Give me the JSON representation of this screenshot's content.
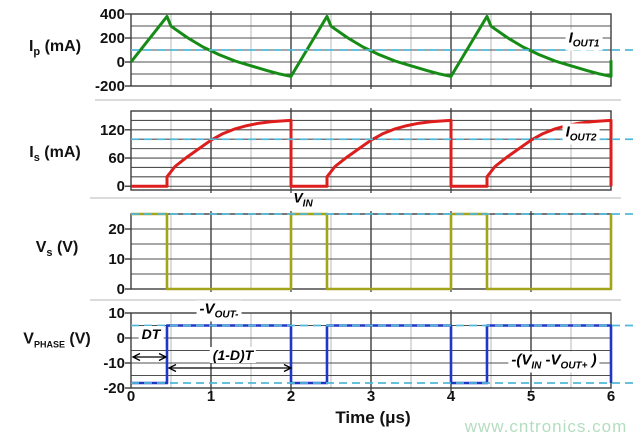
{
  "watermark_text": "www.cntronics.com",
  "axis": {
    "x_label": "Time (μs)",
    "x_ticks": [
      "0",
      "1",
      "2",
      "3",
      "4",
      "5",
      "6"
    ]
  },
  "y_axis_labels": {
    "ip": {
      "main": "I",
      "sub": "p",
      "rest": " (mA)"
    },
    "is": {
      "main": "I",
      "sub": "s",
      "rest": " (mA)"
    },
    "vs": {
      "main": "V",
      "sub": "s",
      "rest": " (V)"
    },
    "vphase": {
      "main": "V",
      "sub": "PHASE",
      "rest": " (V)"
    }
  },
  "annotations": {
    "iout1": {
      "main": "I",
      "sub": "OUT1"
    },
    "iout2": {
      "main": "I",
      "sub": "OUT2"
    },
    "vin": {
      "main": "V",
      "sub": "IN"
    },
    "vout_neg": {
      "pre": "-",
      "main": "V",
      "sub": "OUT-"
    },
    "dt": {
      "text": "DT"
    },
    "one_minus_d_t": {
      "text": "(1-D)T"
    },
    "vin_minus_vout": {
      "pre": "-(",
      "main1": "V",
      "sub1": "IN",
      "mid": " -",
      "main2": "V",
      "sub2": "OUT+",
      "post": " )"
    }
  },
  "colors": {
    "ip_trace": "#168c16",
    "is_trace": "#de1d1d",
    "vs_trace": "#a3a31c",
    "vphase_trace": "#2236c4",
    "reference_dashed": "#52b7d8",
    "grid_major": "#3d3d3d",
    "grid_mid": "#4f4f4f",
    "grid_minor": "#b9b9b9",
    "separator": "#cfcfcf",
    "watermark": "#b4ddc0",
    "text": "#111111"
  },
  "chart_data": {
    "type": "line",
    "title": "Flyback converter waveforms",
    "xlabel": "Time (μs)",
    "xlim": [
      0,
      6
    ],
    "x_major_step": 1,
    "x_minor_step": 0.5,
    "switching_period_us": 2,
    "duty_on_time_us": 0.45,
    "plots": [
      {
        "name": "Ip (mA)",
        "ylim": [
          -200,
          400
        ],
        "ygrid_range": [
          -200,
          400
        ],
        "ygrid_step": 100,
        "yticks": [
          400,
          200,
          0,
          -200
        ],
        "dashed_levels": [
          100
        ],
        "dashed_label": "IOUT1",
        "color_key": "ip_trace",
        "points": [
          [
            0,
            0
          ],
          [
            0.45,
            380
          ],
          [
            0.5,
            298
          ],
          [
            0.7,
            205
          ],
          [
            0.9,
            125
          ],
          [
            1.1,
            62
          ],
          [
            1.3,
            8
          ],
          [
            1.5,
            -32
          ],
          [
            1.7,
            -72
          ],
          [
            1.85,
            -98
          ],
          [
            2.0,
            -120
          ],
          [
            2.45,
            380
          ],
          [
            2.5,
            298
          ],
          [
            2.7,
            205
          ],
          [
            2.9,
            125
          ],
          [
            3.1,
            62
          ],
          [
            3.3,
            8
          ],
          [
            3.5,
            -32
          ],
          [
            3.7,
            -72
          ],
          [
            3.85,
            -98
          ],
          [
            4.0,
            -120
          ],
          [
            4.45,
            380
          ],
          [
            4.5,
            298
          ],
          [
            4.7,
            205
          ],
          [
            4.9,
            125
          ],
          [
            5.1,
            62
          ],
          [
            5.3,
            8
          ],
          [
            5.5,
            -32
          ],
          [
            5.7,
            -72
          ],
          [
            5.85,
            -98
          ],
          [
            6.0,
            -120
          ],
          [
            6.0,
            15
          ]
        ]
      },
      {
        "name": "Is (mA)",
        "ylim": [
          -8,
          160
        ],
        "ygrid_range": [
          0,
          160
        ],
        "ygrid_step": 20,
        "yticks": [
          120,
          60,
          0
        ],
        "dashed_levels": [
          100
        ],
        "dashed_label": "IOUT2",
        "color_key": "is_trace",
        "points": [
          [
            0,
            0
          ],
          [
            0.45,
            0
          ],
          [
            0.45,
            20
          ],
          [
            0.55,
            42
          ],
          [
            0.7,
            62
          ],
          [
            0.85,
            80
          ],
          [
            1.0,
            98
          ],
          [
            1.15,
            112
          ],
          [
            1.3,
            122
          ],
          [
            1.45,
            129
          ],
          [
            1.6,
            134
          ],
          [
            1.75,
            137
          ],
          [
            1.9,
            139
          ],
          [
            2.0,
            140
          ],
          [
            2.0,
            0
          ],
          [
            2.45,
            0
          ],
          [
            2.45,
            20
          ],
          [
            2.55,
            42
          ],
          [
            2.7,
            62
          ],
          [
            2.85,
            80
          ],
          [
            3.0,
            98
          ],
          [
            3.15,
            112
          ],
          [
            3.3,
            122
          ],
          [
            3.45,
            129
          ],
          [
            3.6,
            134
          ],
          [
            3.75,
            137
          ],
          [
            3.9,
            139
          ],
          [
            4.0,
            140
          ],
          [
            4.0,
            0
          ],
          [
            4.45,
            0
          ],
          [
            4.45,
            20
          ],
          [
            4.55,
            42
          ],
          [
            4.7,
            62
          ],
          [
            4.85,
            80
          ],
          [
            5.0,
            98
          ],
          [
            5.15,
            112
          ],
          [
            5.3,
            122
          ],
          [
            5.45,
            129
          ],
          [
            5.6,
            134
          ],
          [
            5.75,
            137
          ],
          [
            5.9,
            139
          ],
          [
            6.0,
            140
          ],
          [
            6.0,
            0
          ]
        ]
      },
      {
        "name": "Vs (V)",
        "ylim": [
          0,
          25
        ],
        "ygrid_range": [
          0,
          25
        ],
        "ygrid_step": 5,
        "yticks": [
          20,
          10,
          0
        ],
        "dashed_levels": [
          25
        ],
        "dashed_label": "VIN",
        "color_key": "vs_trace",
        "points": [
          [
            0,
            25
          ],
          [
            0.45,
            25
          ],
          [
            0.45,
            0
          ],
          [
            2.0,
            0
          ],
          [
            2.0,
            25
          ],
          [
            2.45,
            25
          ],
          [
            2.45,
            0
          ],
          [
            4.0,
            0
          ],
          [
            4.0,
            25
          ],
          [
            4.45,
            25
          ],
          [
            4.45,
            0
          ],
          [
            6.0,
            0
          ],
          [
            6.0,
            25
          ]
        ]
      },
      {
        "name": "VPHASE (V)",
        "ylim": [
          -20,
          10
        ],
        "ygrid_range": [
          -20,
          10
        ],
        "ygrid_step": 5,
        "yticks": [
          10,
          0,
          -10,
          -20
        ],
        "dashed_levels": [
          5,
          -18
        ],
        "dashed_label": "-VOUT- / -(VIN-VOUT+)",
        "color_key": "vphase_trace",
        "points": [
          [
            0,
            -18
          ],
          [
            0.45,
            -18
          ],
          [
            0.45,
            5
          ],
          [
            2.0,
            5
          ],
          [
            2.0,
            -18
          ],
          [
            2.45,
            -18
          ],
          [
            2.45,
            5
          ],
          [
            4.0,
            5
          ],
          [
            4.0,
            -18
          ],
          [
            4.45,
            -18
          ],
          [
            4.45,
            5
          ],
          [
            6.0,
            5
          ],
          [
            6.0,
            -18
          ]
        ]
      }
    ]
  }
}
